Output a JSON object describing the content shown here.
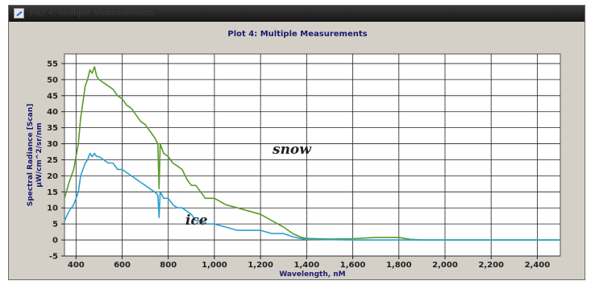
{
  "window": {
    "title": "Plot 4: Multiple Measurements"
  },
  "annotations": {
    "snow": "snow",
    "ice": "ice"
  },
  "colors": {
    "snow": "#5a9a2a",
    "ice": "#2aa0d0",
    "background": "#d4d0c8",
    "grid": "#222222"
  },
  "chart_data": {
    "type": "line",
    "title": "Plot 4: Multiple Measurements",
    "xlabel": "Wavelength, nM",
    "ylabel": "Spectral Radiance [Scan] μW/cm^2/sr/nm",
    "xlim": [
      350,
      2500
    ],
    "ylim": [
      -5,
      58
    ],
    "grid": true,
    "xticks": [
      400,
      600,
      800,
      1000,
      1200,
      1400,
      1600,
      1800,
      2000,
      2200,
      2400
    ],
    "xtick_labels": [
      "400",
      "600",
      "800",
      "1,000",
      "1,200",
      "1,400",
      "1,600",
      "1,800",
      "2,000",
      "2,200",
      "2,400"
    ],
    "yticks": [
      -5,
      0,
      5,
      10,
      15,
      20,
      25,
      30,
      35,
      40,
      45,
      50,
      55
    ],
    "series": [
      {
        "name": "snow",
        "x": [
          350,
          370,
          390,
          400,
          410,
          420,
          430,
          440,
          450,
          460,
          470,
          480,
          490,
          500,
          520,
          540,
          560,
          580,
          600,
          620,
          640,
          660,
          680,
          700,
          720,
          740,
          755,
          760,
          765,
          780,
          800,
          820,
          840,
          860,
          880,
          900,
          920,
          940,
          960,
          980,
          1000,
          1050,
          1100,
          1150,
          1200,
          1250,
          1300,
          1340,
          1370,
          1400,
          1450,
          1500,
          1600,
          1700,
          1800,
          1850,
          1900,
          2000,
          2200,
          2400,
          2500
        ],
        "y": [
          13,
          18,
          22,
          26,
          30,
          38,
          43,
          48,
          50,
          53,
          52,
          54,
          51,
          50,
          49,
          48,
          47,
          45,
          44,
          42,
          41,
          39,
          37,
          36,
          34,
          32,
          30,
          16,
          30,
          27,
          26,
          24,
          23,
          22,
          19,
          17,
          17,
          15,
          13,
          13,
          13,
          11,
          10,
          9,
          8,
          6,
          4,
          2,
          1,
          0.5,
          0.4,
          0.3,
          0.4,
          0.8,
          0.8,
          0.2,
          0,
          0,
          0,
          0,
          0
        ]
      },
      {
        "name": "ice",
        "x": [
          350,
          370,
          390,
          400,
          410,
          420,
          430,
          440,
          450,
          460,
          470,
          480,
          490,
          500,
          520,
          540,
          560,
          580,
          600,
          620,
          640,
          660,
          680,
          700,
          720,
          740,
          755,
          760,
          765,
          780,
          800,
          820,
          840,
          860,
          880,
          900,
          920,
          940,
          960,
          1000,
          1050,
          1100,
          1150,
          1200,
          1250,
          1300,
          1340,
          1370,
          1400,
          1500,
          1600,
          1800,
          2000,
          2200,
          2400,
          2500
        ],
        "y": [
          6,
          9,
          11,
          13,
          15,
          20,
          22,
          24,
          25,
          27,
          26,
          27,
          26,
          26,
          25,
          24,
          24,
          22,
          22,
          21,
          20,
          19,
          18,
          17,
          16,
          15,
          14,
          7,
          15,
          13,
          13,
          11,
          10,
          10,
          9,
          8,
          6,
          6,
          5,
          5,
          4,
          3,
          3,
          3,
          2,
          2,
          1,
          0.5,
          0.2,
          0.1,
          0,
          0,
          0,
          0,
          0,
          0
        ]
      }
    ]
  }
}
